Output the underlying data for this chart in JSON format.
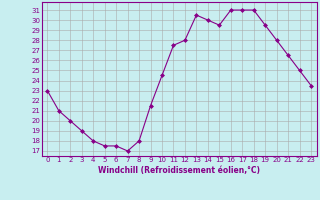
{
  "x": [
    0,
    1,
    2,
    3,
    4,
    5,
    6,
    7,
    8,
    9,
    10,
    11,
    12,
    13,
    14,
    15,
    16,
    17,
    18,
    19,
    20,
    21,
    22,
    23
  ],
  "y": [
    23,
    21,
    20,
    19,
    18,
    17.5,
    17.5,
    17,
    18,
    21.5,
    24.5,
    27.5,
    28,
    30.5,
    30,
    29.5,
    31,
    31,
    31,
    29.5,
    28,
    26.5,
    25,
    23.5
  ],
  "line_color": "#880088",
  "marker": "D",
  "marker_size": 2,
  "bg_color": "#c8eef0",
  "grid_color": "#aaaaaa",
  "xlabel": "Windchill (Refroidissement éolien,°C)",
  "ylabel_ticks": [
    17,
    18,
    19,
    20,
    21,
    22,
    23,
    24,
    25,
    26,
    27,
    28,
    29,
    30,
    31
  ],
  "ylim": [
    16.5,
    31.8
  ],
  "xlim": [
    -0.5,
    23.5
  ],
  "xticks": [
    0,
    1,
    2,
    3,
    4,
    5,
    6,
    7,
    8,
    9,
    10,
    11,
    12,
    13,
    14,
    15,
    16,
    17,
    18,
    19,
    20,
    21,
    22,
    23
  ],
  "tick_color": "#880088",
  "axis_label_color": "#880088",
  "tick_fontsize": 5,
  "xlabel_fontsize": 5.5
}
